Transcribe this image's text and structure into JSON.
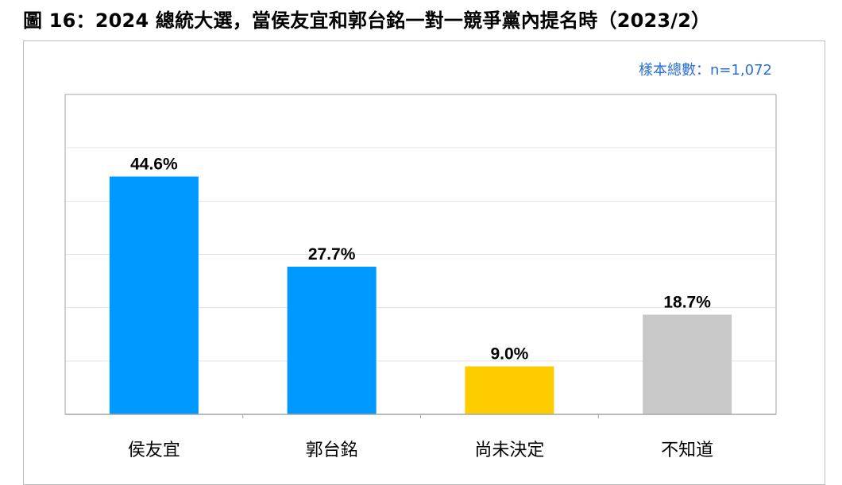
{
  "title": "圖 16：2024 總統大選，當侯友宜和郭台銘一對一競爭黨內提名時（2023/2）",
  "sample_size": "樣本總數：n=1,072",
  "colors": {
    "blue": "#0099ff",
    "yellow": "#ffcc00",
    "gray": "#c8c8c8",
    "grid": "#e3e3e3",
    "axis": "#a6a6a6"
  },
  "chart_data": {
    "type": "bar",
    "categories": [
      "侯友宜",
      "郭台銘",
      "尚未決定",
      "不知道"
    ],
    "values": [
      44.6,
      27.7,
      9.0,
      18.7
    ],
    "data_labels": [
      "44.6%",
      "27.7%",
      "9.0%",
      "18.7%"
    ],
    "bar_colors": [
      "#0099ff",
      "#0099ff",
      "#ffcc00",
      "#c8c8c8"
    ],
    "ylim": [
      0,
      60
    ],
    "grid": true,
    "legend": "none"
  }
}
